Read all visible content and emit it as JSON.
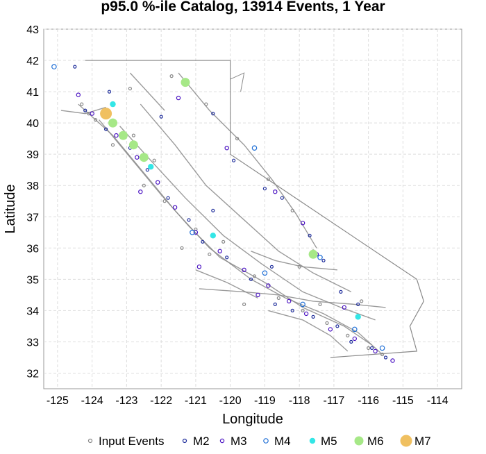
{
  "chart_data": {
    "type": "scatter",
    "title": "p95.0 %-ile Catalog, 13914 Events, 1 Year",
    "xlabel": "Longitude",
    "ylabel": "Latitude",
    "xlim": [
      -125.4,
      -113.3
    ],
    "ylim": [
      31.5,
      43
    ],
    "xticks": [
      -125,
      -124,
      -123,
      -122,
      -121,
      -120,
      -119,
      -118,
      -117,
      -116,
      -115,
      -114
    ],
    "yticks": [
      32,
      33,
      34,
      35,
      36,
      37,
      38,
      39,
      40,
      41,
      42,
      43
    ],
    "grid": true,
    "legend_position": "bottom",
    "colors": {
      "input": "#888888",
      "m2": "#1f2e9c",
      "m3": "#4a12c2",
      "m4": "#1f6fd6",
      "m5": "#33e6e6",
      "m6": "#a6e887",
      "m7": "#f0c060",
      "fault": "#8a8a8a",
      "border": "#8a8a8a"
    },
    "series": [
      {
        "name": "Input Events",
        "marker": "open-circle",
        "points": [
          [
            -124.1,
            40.3
          ],
          [
            -123.9,
            40.1
          ],
          [
            -122.8,
            39.6
          ],
          [
            -122.2,
            38.8
          ],
          [
            -121.9,
            37.5
          ],
          [
            -121.0,
            36.6
          ],
          [
            -120.6,
            35.8
          ],
          [
            -119.3,
            35.1
          ],
          [
            -118.6,
            34.4
          ],
          [
            -117.9,
            34.0
          ],
          [
            -117.2,
            33.6
          ],
          [
            -116.6,
            33.2
          ],
          [
            -116.0,
            32.8
          ],
          [
            -115.6,
            32.6
          ],
          [
            -121.7,
            41.5
          ],
          [
            -120.7,
            40.6
          ],
          [
            -119.8,
            39.5
          ],
          [
            -118.9,
            38.2
          ],
          [
            -118.2,
            37.2
          ],
          [
            -118.0,
            35.4
          ],
          [
            -117.6,
            35.9
          ],
          [
            -120.2,
            36.2
          ],
          [
            -122.5,
            38.0
          ],
          [
            -123.4,
            39.3
          ],
          [
            -124.3,
            40.6
          ],
          [
            -116.2,
            34.3
          ],
          [
            -117.4,
            34.2
          ],
          [
            -119.6,
            34.2
          ],
          [
            -121.4,
            36.0
          ],
          [
            -122.9,
            41.1
          ]
        ]
      },
      {
        "name": "M2",
        "marker": "open-circle",
        "points": [
          [
            -124.2,
            40.4
          ],
          [
            -123.6,
            39.8
          ],
          [
            -122.9,
            39.2
          ],
          [
            -122.4,
            38.5
          ],
          [
            -121.8,
            37.6
          ],
          [
            -121.2,
            36.9
          ],
          [
            -120.8,
            36.2
          ],
          [
            -120.1,
            35.7
          ],
          [
            -119.4,
            35.0
          ],
          [
            -118.7,
            34.2
          ],
          [
            -118.2,
            34.0
          ],
          [
            -117.6,
            33.8
          ],
          [
            -116.9,
            33.5
          ],
          [
            -116.5,
            33.0
          ],
          [
            -115.9,
            32.8
          ],
          [
            -115.5,
            32.5
          ],
          [
            -121.3,
            41.3
          ],
          [
            -120.5,
            40.3
          ],
          [
            -119.9,
            38.8
          ],
          [
            -119.0,
            37.9
          ],
          [
            -118.5,
            37.6
          ],
          [
            -117.7,
            36.4
          ],
          [
            -117.3,
            35.6
          ],
          [
            -116.8,
            34.6
          ],
          [
            -116.3,
            34.2
          ],
          [
            -118.8,
            35.4
          ],
          [
            -120.5,
            37.2
          ],
          [
            -122.0,
            40.2
          ],
          [
            -123.5,
            41.0
          ],
          [
            -124.5,
            41.8
          ]
        ]
      },
      {
        "name": "M3",
        "marker": "open-circle",
        "points": [
          [
            -124.0,
            40.3
          ],
          [
            -123.3,
            39.6
          ],
          [
            -122.7,
            38.9
          ],
          [
            -122.1,
            38.1
          ],
          [
            -121.6,
            37.3
          ],
          [
            -121.0,
            36.5
          ],
          [
            -120.3,
            35.9
          ],
          [
            -119.6,
            35.3
          ],
          [
            -118.9,
            34.8
          ],
          [
            -118.3,
            34.3
          ],
          [
            -117.8,
            33.9
          ],
          [
            -117.1,
            33.4
          ],
          [
            -116.4,
            33.1
          ],
          [
            -115.8,
            32.7
          ],
          [
            -115.3,
            32.4
          ],
          [
            -121.5,
            40.8
          ],
          [
            -120.1,
            39.2
          ],
          [
            -118.7,
            37.8
          ],
          [
            -117.9,
            36.8
          ],
          [
            -117.5,
            35.8
          ],
          [
            -116.7,
            34.1
          ],
          [
            -119.2,
            34.5
          ],
          [
            -120.9,
            35.4
          ],
          [
            -122.6,
            37.8
          ],
          [
            -124.4,
            40.9
          ]
        ]
      },
      {
        "name": "M4",
        "marker": "open-circle",
        "points": [
          [
            -125.1,
            41.8
          ],
          [
            -123.4,
            40.6
          ],
          [
            -122.3,
            38.6
          ],
          [
            -121.1,
            36.5
          ],
          [
            -119.0,
            35.2
          ],
          [
            -117.9,
            34.2
          ],
          [
            -116.4,
            33.4
          ],
          [
            -115.6,
            32.8
          ],
          [
            -119.3,
            39.2
          ],
          [
            -117.4,
            35.7
          ]
        ]
      },
      {
        "name": "M5",
        "marker": "filled-circle",
        "points": [
          [
            -123.4,
            40.6
          ],
          [
            -122.3,
            38.6
          ],
          [
            -120.5,
            36.4
          ],
          [
            -117.6,
            35.8
          ],
          [
            -116.3,
            33.8
          ],
          [
            -121.3,
            41.3
          ]
        ]
      },
      {
        "name": "M6",
        "marker": "filled-circle",
        "points": [
          [
            -123.4,
            40.0
          ],
          [
            -123.1,
            39.6
          ],
          [
            -122.8,
            39.3
          ],
          [
            -122.5,
            38.9
          ],
          [
            -117.6,
            35.8
          ],
          [
            -121.3,
            41.3
          ]
        ]
      },
      {
        "name": "M7",
        "marker": "filled-circle",
        "points": [
          [
            -123.6,
            40.3
          ]
        ]
      }
    ],
    "legend": [
      {
        "label": "Input Events",
        "key": "input"
      },
      {
        "label": "M2",
        "key": "m2"
      },
      {
        "label": "M3",
        "key": "m3"
      },
      {
        "label": "M4",
        "key": "m4"
      },
      {
        "label": "M5",
        "key": "m5"
      },
      {
        "label": "M6",
        "key": "m6"
      },
      {
        "label": "M7",
        "key": "m7"
      }
    ]
  }
}
